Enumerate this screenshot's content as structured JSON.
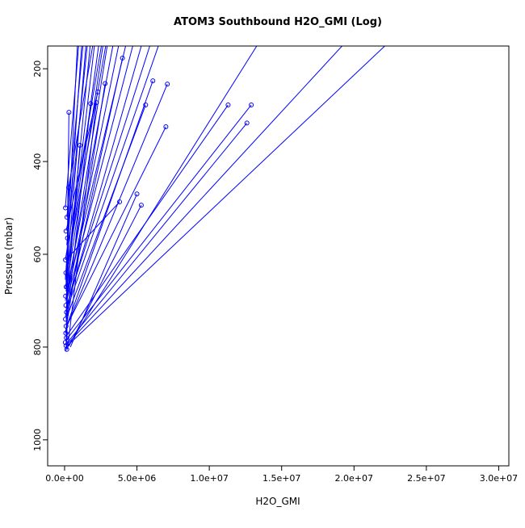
{
  "chart_data": {
    "type": "line",
    "title": "ATOM3 Southbound H2O_GMI (Log)",
    "xlabel": "H2O_GMI",
    "ylabel": "Pressure (mbar)",
    "xlim": [
      -1170000,
      30700000
    ],
    "ylim": [
      151,
      1056
    ],
    "y_axis_reversed": true,
    "grid": false,
    "legend": "none",
    "colors": {
      "series": "#0000ff",
      "axis": "#000000",
      "background": "#ffffff"
    },
    "x_axis": {
      "ticks": [
        {
          "v": 0,
          "label": "0.0e+00"
        },
        {
          "v": 5000000,
          "label": "5.0e+06"
        },
        {
          "v": 10000000,
          "label": "1.0e+07"
        },
        {
          "v": 15000000,
          "label": "1.5e+07"
        },
        {
          "v": 20000000,
          "label": "2.0e+07"
        },
        {
          "v": 25000000,
          "label": "2.5e+07"
        },
        {
          "v": 30000000,
          "label": "3.0e+07"
        }
      ]
    },
    "y_axis": {
      "ticks": [
        {
          "v": 200,
          "label": "200"
        },
        {
          "v": 400,
          "label": "400"
        },
        {
          "v": 600,
          "label": "600"
        },
        {
          "v": 800,
          "label": "800"
        },
        {
          "v": 1000,
          "label": "1000"
        }
      ]
    },
    "segments_format": [
      "x_start",
      "pressure_start_mbar",
      "x_end",
      "pressure_end_mbar"
    ],
    "segments": [
      [
        100000,
        800,
        22500000,
        140
      ],
      [
        150000,
        795,
        19500000,
        140
      ],
      [
        100000,
        805,
        13500000,
        140
      ],
      [
        200000,
        790,
        12600000,
        317
      ],
      [
        100000,
        785,
        12900000,
        278
      ],
      [
        150000,
        775,
        11300000,
        278
      ],
      [
        100000,
        760,
        7100000,
        233
      ],
      [
        200000,
        750,
        6100000,
        226
      ],
      [
        300000,
        745,
        7000000,
        325
      ],
      [
        100000,
        740,
        5600000,
        278
      ],
      [
        50000,
        735,
        4000000,
        177
      ],
      [
        400000,
        800,
        5000000,
        470
      ],
      [
        300000,
        798,
        5300000,
        494
      ],
      [
        200000,
        730,
        1800000,
        275
      ],
      [
        100000,
        725,
        1060000,
        365
      ],
      [
        150000,
        720,
        6600000,
        140
      ],
      [
        100000,
        715,
        6000000,
        140
      ],
      [
        200000,
        710,
        5400000,
        140
      ],
      [
        100000,
        705,
        4800000,
        140
      ],
      [
        50000,
        700,
        4300000,
        140
      ],
      [
        150000,
        695,
        3800000,
        140
      ],
      [
        100000,
        690,
        3400000,
        140
      ],
      [
        200000,
        685,
        3000000,
        140
      ],
      [
        100000,
        680,
        2700000,
        140
      ],
      [
        50000,
        675,
        2400000,
        140
      ],
      [
        100000,
        670,
        2100000,
        140
      ],
      [
        150000,
        665,
        1800000,
        140
      ],
      [
        100000,
        660,
        1500000,
        140
      ],
      [
        50000,
        655,
        1200000,
        140
      ],
      [
        100000,
        650,
        900000,
        140
      ],
      [
        200000,
        805,
        2200000,
        273
      ],
      [
        280000,
        456,
        2000000,
        140
      ],
      [
        50000,
        500,
        1000000,
        140
      ],
      [
        100000,
        612,
        3800000,
        487
      ],
      [
        100000,
        640,
        2900000,
        140
      ],
      [
        50000,
        612,
        2600000,
        140
      ],
      [
        150000,
        580,
        1600000,
        140
      ],
      [
        50000,
        770,
        2800000,
        232
      ],
      [
        100000,
        808,
        300000,
        294
      ],
      [
        150000,
        802,
        280000,
        456
      ],
      [
        100000,
        550,
        2300000,
        250
      ],
      [
        160000,
        520,
        1300000,
        140
      ]
    ],
    "markers_format": [
      "x",
      "pressure_mbar"
    ],
    "markers": [
      [
        150000,
        805
      ],
      [
        100000,
        797
      ],
      [
        50000,
        790
      ],
      [
        120000,
        780
      ],
      [
        80000,
        770
      ],
      [
        100000,
        755
      ],
      [
        60000,
        740
      ],
      [
        130000,
        725
      ],
      [
        90000,
        710
      ],
      [
        70000,
        690
      ],
      [
        110000,
        670
      ],
      [
        90000,
        640
      ],
      [
        60000,
        612
      ],
      [
        200000,
        565
      ],
      [
        100000,
        550
      ],
      [
        160000,
        520
      ],
      [
        60000,
        500
      ],
      [
        280000,
        456
      ],
      [
        300000,
        294
      ],
      [
        4000000,
        177
      ],
      [
        6100000,
        226
      ],
      [
        7100000,
        233
      ],
      [
        2800000,
        232
      ],
      [
        2200000,
        273
      ],
      [
        1800000,
        275
      ],
      [
        5600000,
        278
      ],
      [
        11300000,
        278
      ],
      [
        12900000,
        278
      ],
      [
        7000000,
        325
      ],
      [
        12600000,
        317
      ],
      [
        1060000,
        365
      ],
      [
        5000000,
        470
      ],
      [
        5300000,
        494
      ],
      [
        3800000,
        487
      ],
      [
        2300000,
        250
      ]
    ]
  }
}
